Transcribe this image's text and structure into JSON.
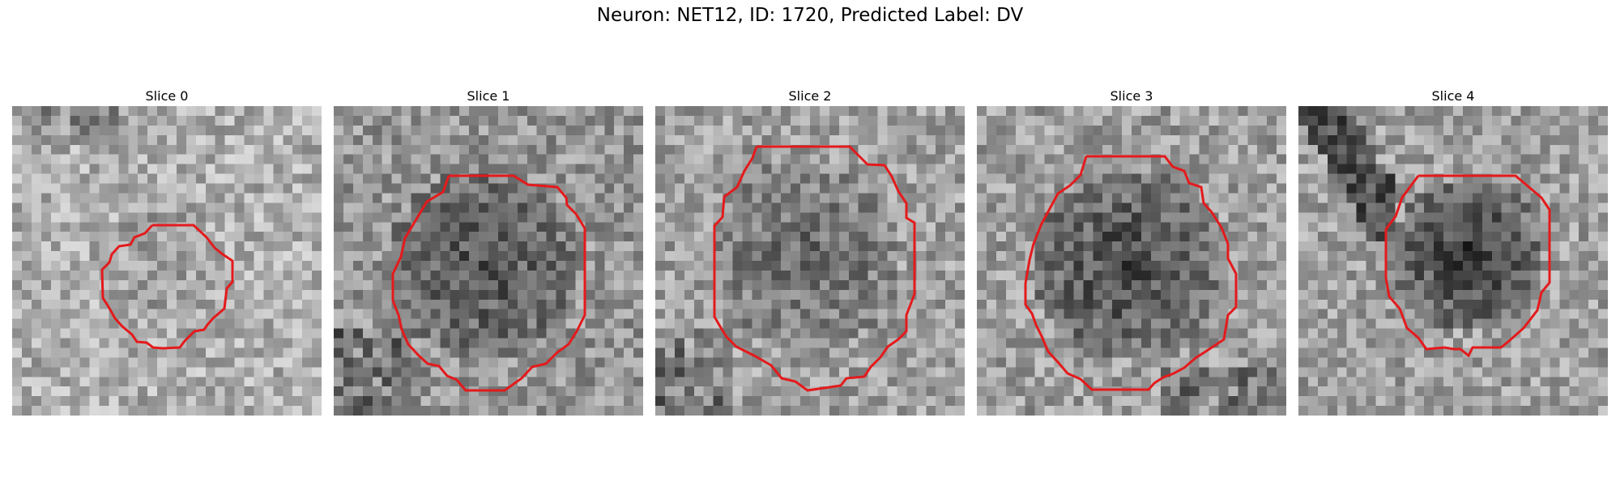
{
  "figure": {
    "title": "Neuron: NET12, ID: 1720, Predicted Label: DV"
  },
  "panels": [
    {
      "title": "Slice 0",
      "overlay_color": "#e41a1c"
    },
    {
      "title": "Slice 1",
      "overlay_color": "#e41a1c"
    },
    {
      "title": "Slice 2",
      "overlay_color": "#e41a1c"
    },
    {
      "title": "Slice 3",
      "overlay_color": "#e41a1c"
    },
    {
      "title": "Slice 4",
      "overlay_color": "#e41a1c"
    }
  ]
}
